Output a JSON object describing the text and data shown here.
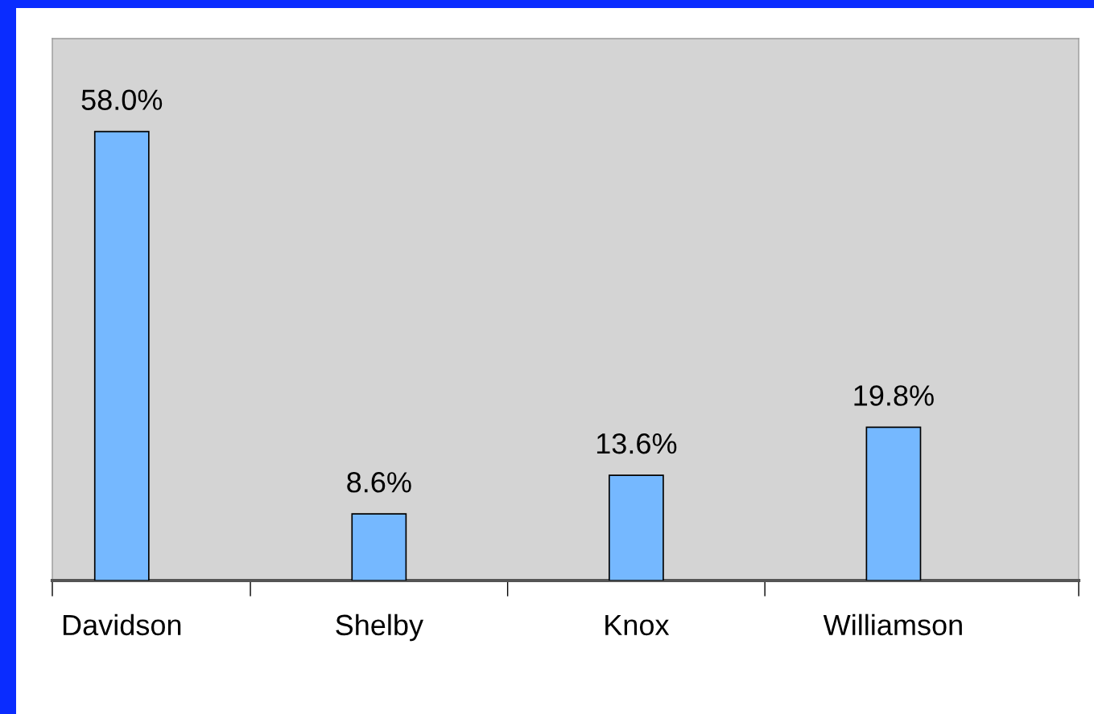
{
  "chart_data": {
    "type": "bar",
    "categories": [
      "Davidson",
      "Shelby",
      "Knox",
      "Williamson"
    ],
    "values": [
      58.0,
      8.6,
      13.6,
      19.8
    ],
    "value_labels": [
      "58.0%",
      "8.6%",
      "13.6%",
      "19.8%"
    ],
    "color": "#75b8ff",
    "ylim": [
      0,
      70
    ],
    "tick_labels": "x",
    "grid": false,
    "legend": false
  }
}
